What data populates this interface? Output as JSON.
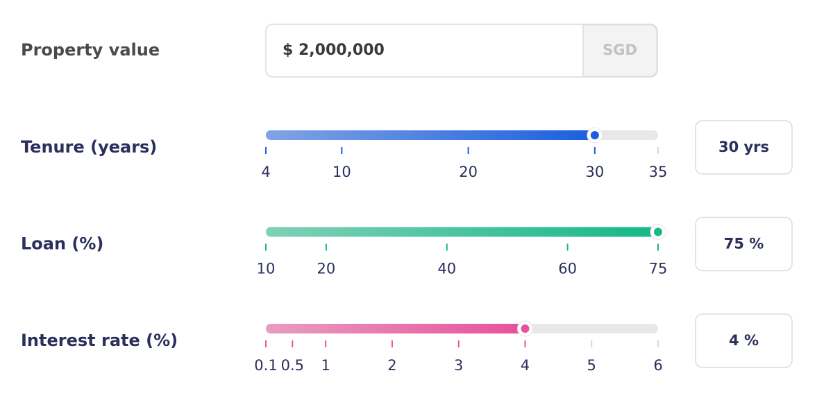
{
  "property": {
    "label": "Property value",
    "value": "$ 2,000,000",
    "currency": "SGD"
  },
  "sliders": [
    {
      "label": "Tenure (years)",
      "value": 30,
      "value_label": "30 yrs",
      "ticks": [
        4,
        10,
        20,
        30,
        35
      ],
      "color": "#1a5fe0"
    },
    {
      "label": "Loan (%)",
      "value": 75,
      "value_label": "75 %",
      "ticks": [
        10,
        20,
        40,
        60,
        75
      ],
      "color": "#16b886"
    },
    {
      "label": "Interest rate (%)",
      "value": 4,
      "value_label": "4 %",
      "ticks": [
        0.1,
        0.5,
        1,
        2,
        3,
        4,
        5,
        6
      ],
      "color": "#e8519a"
    }
  ]
}
